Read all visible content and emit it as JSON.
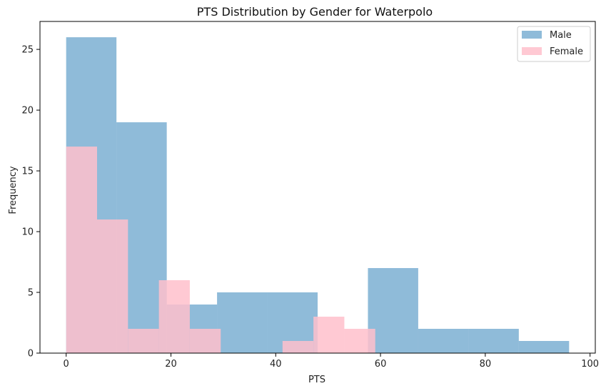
{
  "chart_data": {
    "type": "bar",
    "title": "PTS Distribution by Gender for Waterpolo",
    "xlabel": "PTS",
    "ylabel": "Frequency",
    "xlim": [
      -5,
      101
    ],
    "ylim": [
      0,
      27.3
    ],
    "xticks": [
      0,
      20,
      40,
      60,
      80,
      100
    ],
    "yticks": [
      0,
      5,
      10,
      15,
      20,
      25
    ],
    "legend_position": "top-right",
    "series": [
      {
        "name": "Male",
        "color": "#1f77b4",
        "opacity": 0.5,
        "bins": [
          {
            "x0": 0,
            "x1": 9.6,
            "count": 26
          },
          {
            "x0": 9.6,
            "x1": 19.2,
            "count": 19
          },
          {
            "x0": 19.2,
            "x1": 28.8,
            "count": 4
          },
          {
            "x0": 28.8,
            "x1": 38.4,
            "count": 5
          },
          {
            "x0": 38.4,
            "x1": 48.0,
            "count": 5
          },
          {
            "x0": 48.0,
            "x1": 57.6,
            "count": 0
          },
          {
            "x0": 57.6,
            "x1": 67.2,
            "count": 7
          },
          {
            "x0": 67.2,
            "x1": 76.8,
            "count": 2
          },
          {
            "x0": 76.8,
            "x1": 86.4,
            "count": 2
          },
          {
            "x0": 86.4,
            "x1": 96.0,
            "count": 1
          }
        ]
      },
      {
        "name": "Female",
        "color": "#ffc0cb",
        "opacity": 0.85,
        "bins": [
          {
            "x0": 0,
            "x1": 5.9,
            "count": 17
          },
          {
            "x0": 5.9,
            "x1": 11.8,
            "count": 11
          },
          {
            "x0": 11.8,
            "x1": 17.7,
            "count": 2
          },
          {
            "x0": 17.7,
            "x1": 23.6,
            "count": 6
          },
          {
            "x0": 23.6,
            "x1": 29.5,
            "count": 2
          },
          {
            "x0": 29.5,
            "x1": 35.4,
            "count": 0
          },
          {
            "x0": 35.4,
            "x1": 41.3,
            "count": 0
          },
          {
            "x0": 41.3,
            "x1": 47.2,
            "count": 1
          },
          {
            "x0": 47.2,
            "x1": 53.1,
            "count": 3
          },
          {
            "x0": 53.1,
            "x1": 59.0,
            "count": 2
          }
        ]
      }
    ]
  }
}
